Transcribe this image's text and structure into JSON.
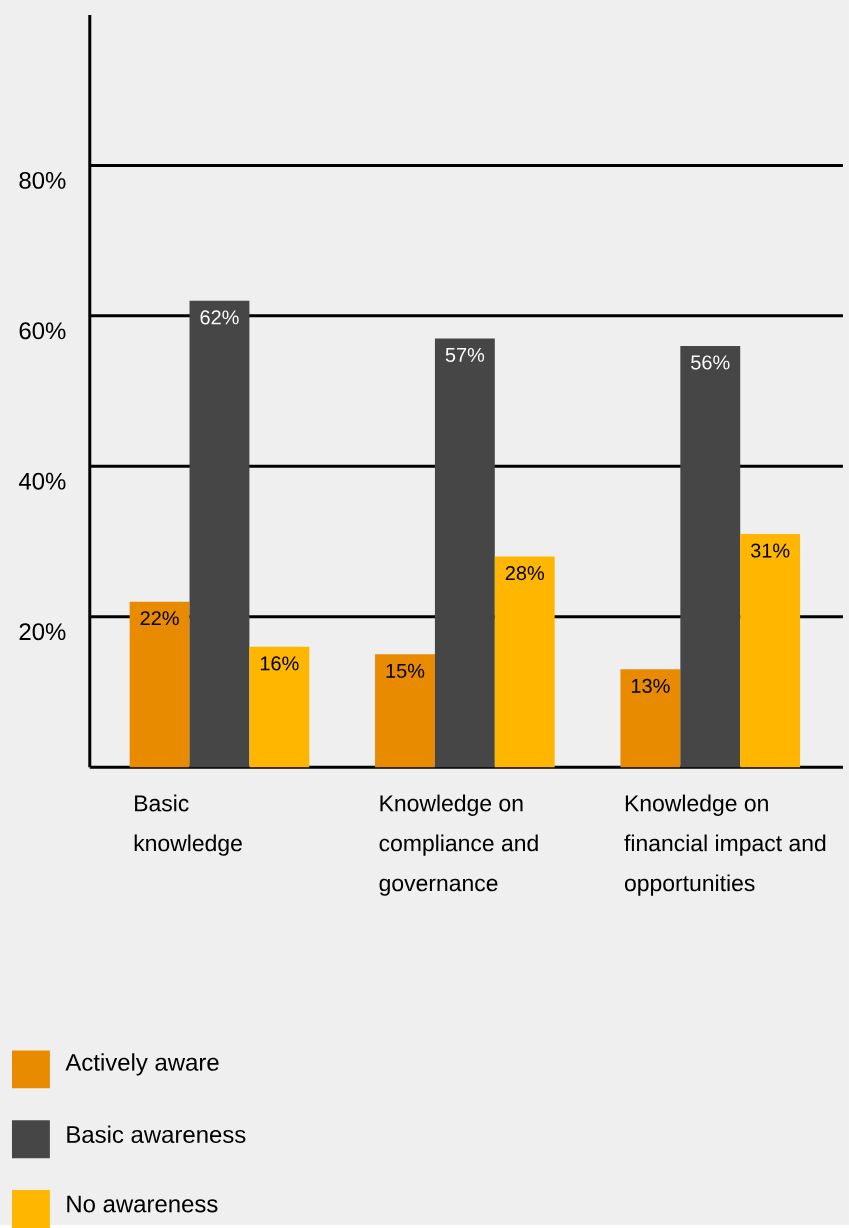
{
  "chart_data": {
    "type": "bar",
    "categories": [
      "Basic knowledge",
      "Knowledge on compliance and governance",
      "Knowledge on financial impact and opportunities"
    ],
    "series": [
      {
        "name": "Actively aware",
        "color": "#e88b00",
        "values": [
          22,
          15,
          13
        ],
        "value_labels": [
          "22%",
          "15%",
          "13%"
        ]
      },
      {
        "name": "Basic awareness",
        "color": "#464646",
        "values": [
          62,
          57,
          56
        ],
        "value_labels": [
          "62%",
          "57%",
          "56%"
        ]
      },
      {
        "name": "No awareness",
        "color": "#ffb600",
        "values": [
          16,
          28,
          31
        ],
        "value_labels": [
          "16%",
          "28%",
          "31%"
        ]
      }
    ],
    "ylim": [
      0,
      100
    ],
    "yticks": [
      {
        "value": 0,
        "label": null
      },
      {
        "value": 20,
        "label": "20%"
      },
      {
        "value": 40,
        "label": "40%"
      },
      {
        "value": 60,
        "label": "60%"
      },
      {
        "value": 80,
        "label": "80%"
      }
    ],
    "grid": "y",
    "legend": "bottom"
  }
}
